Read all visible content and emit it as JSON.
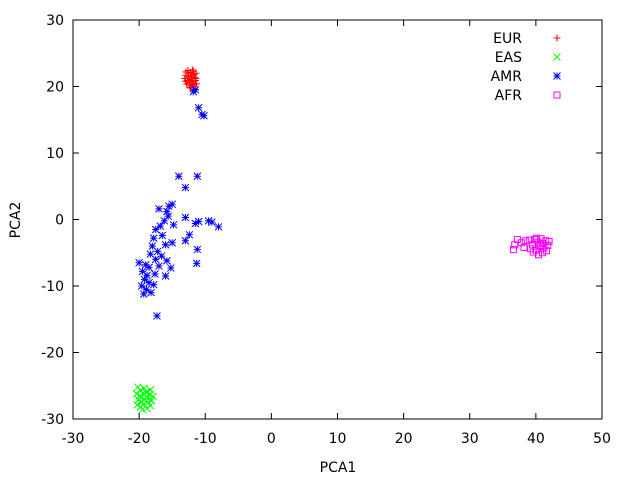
{
  "chart_data": {
    "type": "scatter",
    "xlabel": "PCA1",
    "ylabel": "PCA2",
    "xlim": [
      -30,
      50
    ],
    "ylim": [
      -30,
      30
    ],
    "xticks": [
      -30,
      -20,
      -10,
      0,
      10,
      20,
      30,
      40,
      50
    ],
    "yticks": [
      -30,
      -20,
      -10,
      0,
      10,
      20,
      30
    ],
    "grid": false,
    "legend_position": "top-right",
    "series": [
      {
        "name": "EUR",
        "color": "#ff0000",
        "marker": "plus",
        "points": [
          [
            -12.6,
            22.4
          ],
          [
            -12.2,
            22.1
          ],
          [
            -11.8,
            22.3
          ],
          [
            -11.4,
            22.0
          ],
          [
            -12.9,
            21.7
          ],
          [
            -12.5,
            21.5
          ],
          [
            -12.0,
            21.6
          ],
          [
            -11.6,
            21.4
          ],
          [
            -13.1,
            21.2
          ],
          [
            -12.7,
            20.9
          ],
          [
            -12.3,
            21.0
          ],
          [
            -11.9,
            20.7
          ],
          [
            -11.5,
            20.9
          ],
          [
            -12.8,
            20.4
          ],
          [
            -12.4,
            20.2
          ],
          [
            -12.0,
            20.5
          ],
          [
            -11.7,
            20.1
          ],
          [
            -11.3,
            20.4
          ],
          [
            -12.2,
            19.9
          ],
          [
            -11.6,
            19.6
          ],
          [
            -12.6,
            22.0
          ],
          [
            -12.1,
            21.3
          ],
          [
            -11.7,
            21.8
          ],
          [
            -12.4,
            20.7
          ],
          [
            -11.8,
            20.3
          ],
          [
            -13.0,
            20.8
          ],
          [
            -12.9,
            22.2
          ],
          [
            -11.4,
            21.2
          ],
          [
            -12.3,
            19.8
          ],
          [
            -11.9,
            22.5
          ]
        ]
      },
      {
        "name": "EAS",
        "color": "#00ff00",
        "marker": "cross",
        "points": [
          [
            -20.2,
            -25.2
          ],
          [
            -19.8,
            -25.7
          ],
          [
            -19.3,
            -25.4
          ],
          [
            -18.8,
            -25.9
          ],
          [
            -18.3,
            -25.6
          ],
          [
            -20.4,
            -26.2
          ],
          [
            -19.9,
            -26.5
          ],
          [
            -19.4,
            -26.1
          ],
          [
            -18.9,
            -26.7
          ],
          [
            -18.4,
            -26.3
          ],
          [
            -17.9,
            -26.6
          ],
          [
            -20.1,
            -27.1
          ],
          [
            -19.6,
            -27.4
          ],
          [
            -19.1,
            -27.0
          ],
          [
            -18.6,
            -27.5
          ],
          [
            -18.1,
            -27.2
          ],
          [
            -20.3,
            -27.9
          ],
          [
            -19.8,
            -28.2
          ],
          [
            -19.3,
            -27.8
          ],
          [
            -18.8,
            -28.4
          ],
          [
            -18.3,
            -28.0
          ],
          [
            -19.5,
            -28.6
          ],
          [
            -19.0,
            -26.0
          ],
          [
            -18.6,
            -26.9
          ],
          [
            -19.7,
            -26.8
          ]
        ]
      },
      {
        "name": "AMR",
        "color": "#0000ff",
        "marker": "star",
        "points": [
          [
            -11.8,
            19.2
          ],
          [
            -11.5,
            19.5
          ],
          [
            -11.0,
            16.8
          ],
          [
            -10.5,
            15.8
          ],
          [
            -10.2,
            15.6
          ],
          [
            -14.0,
            6.5
          ],
          [
            -11.2,
            6.5
          ],
          [
            -13.0,
            4.8
          ],
          [
            -15.8,
            1.2
          ],
          [
            -15.5,
            2.0
          ],
          [
            -15.0,
            2.3
          ],
          [
            -17.0,
            1.6
          ],
          [
            -13.0,
            0.3
          ],
          [
            -16.2,
            -0.2
          ],
          [
            -15.6,
            0.5
          ],
          [
            -14.8,
            -0.8
          ],
          [
            -11.5,
            -0.6
          ],
          [
            -11.0,
            -0.3
          ],
          [
            -9.5,
            -0.2
          ],
          [
            -9.0,
            -0.4
          ],
          [
            -8.0,
            -1.1
          ],
          [
            -16.8,
            -1.0
          ],
          [
            -17.5,
            -1.5
          ],
          [
            -16.5,
            -2.4
          ],
          [
            -17.8,
            -2.8
          ],
          [
            -15.0,
            -3.5
          ],
          [
            -13.0,
            -3.2
          ],
          [
            -12.4,
            -2.3
          ],
          [
            -16.0,
            -3.8
          ],
          [
            -18.0,
            -4.0
          ],
          [
            -17.2,
            -4.8
          ],
          [
            -11.2,
            -4.5
          ],
          [
            -16.6,
            -5.5
          ],
          [
            -18.3,
            -5.2
          ],
          [
            -17.5,
            -6.0
          ],
          [
            -15.8,
            -6.2
          ],
          [
            -20.0,
            -6.5
          ],
          [
            -19.0,
            -6.8
          ],
          [
            -18.5,
            -7.2
          ],
          [
            -17.0,
            -7.0
          ],
          [
            -15.2,
            -7.3
          ],
          [
            -11.3,
            -6.6
          ],
          [
            -19.5,
            -7.8
          ],
          [
            -18.8,
            -8.4
          ],
          [
            -17.6,
            -8.2
          ],
          [
            -16.0,
            -8.5
          ],
          [
            -19.2,
            -9.0
          ],
          [
            -18.5,
            -9.5
          ],
          [
            -17.8,
            -9.8
          ],
          [
            -19.6,
            -10.0
          ],
          [
            -18.9,
            -10.5
          ],
          [
            -19.3,
            -11.2
          ],
          [
            -18.2,
            -11.0
          ],
          [
            -17.3,
            -14.5
          ]
        ]
      },
      {
        "name": "AFR",
        "color": "#ff00ff",
        "marker": "square",
        "points": [
          [
            37.2,
            -3.0
          ],
          [
            36.8,
            -3.8
          ],
          [
            36.6,
            -4.5
          ],
          [
            37.8,
            -3.5
          ],
          [
            38.4,
            -3.2
          ],
          [
            38.2,
            -4.2
          ],
          [
            39.0,
            -3.1
          ],
          [
            39.5,
            -3.8
          ],
          [
            39.8,
            -3.0
          ],
          [
            40.0,
            -4.6
          ],
          [
            40.3,
            -3.4
          ],
          [
            40.6,
            -4.0
          ],
          [
            40.8,
            -2.9
          ],
          [
            41.0,
            -3.6
          ],
          [
            41.2,
            -4.3
          ],
          [
            41.5,
            -3.2
          ],
          [
            41.8,
            -3.9
          ],
          [
            42.0,
            -3.3
          ],
          [
            39.6,
            -4.9
          ],
          [
            40.4,
            -5.3
          ],
          [
            41.0,
            -5.0
          ],
          [
            40.1,
            -2.8
          ],
          [
            39.2,
            -4.4
          ],
          [
            41.6,
            -4.7
          ],
          [
            40.7,
            -3.9
          ]
        ]
      }
    ]
  }
}
